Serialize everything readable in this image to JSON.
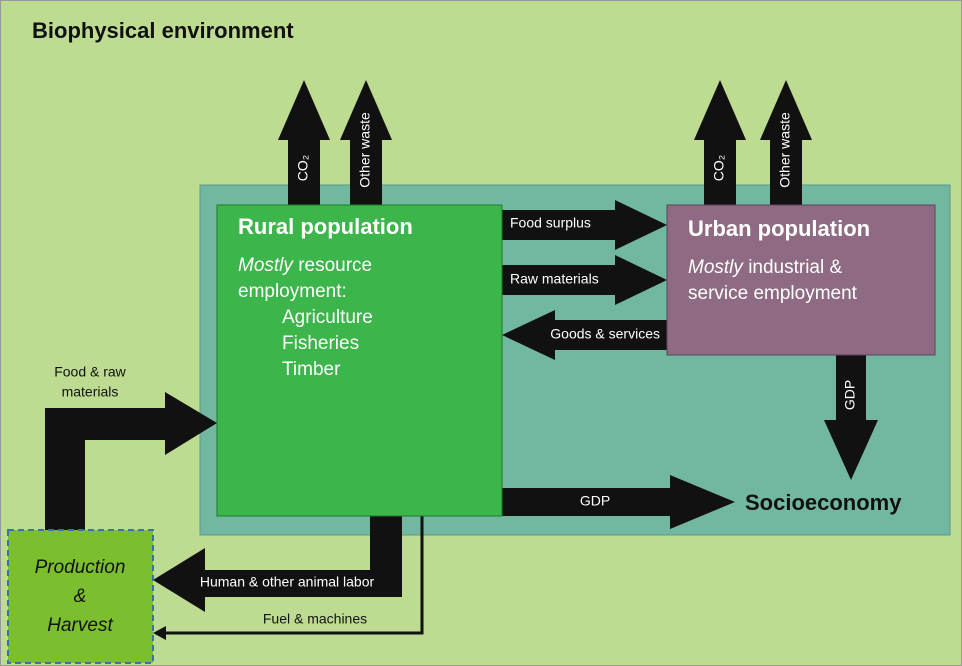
{
  "title": "Biophysical environment",
  "rural": {
    "title": "Rural population",
    "emphasis": "Mostly",
    "line1": "resource",
    "line2": "employment:",
    "items": [
      "Agriculture",
      "Fisheries",
      "Timber"
    ]
  },
  "urban": {
    "title": "Urban population",
    "emphasis": "Mostly",
    "line1": "industrial &",
    "line2": "service employment"
  },
  "socioeconomy": "Socioeconomy",
  "production": [
    "Production",
    "&",
    "Harvest"
  ],
  "arrows": {
    "rural_co2": "CO₂",
    "rural_waste": "Other waste",
    "urban_co2": "CO₂",
    "urban_waste": "Other waste",
    "food_surplus": "Food surplus",
    "raw_materials": "Raw materials",
    "goods_services": "Goods & services",
    "urban_gdp": "GDP",
    "rural_gdp": "GDP",
    "food_raw": [
      "Food & raw",
      "materials"
    ],
    "labor": "Human & other animal labor",
    "fuel": "Fuel & machines"
  }
}
